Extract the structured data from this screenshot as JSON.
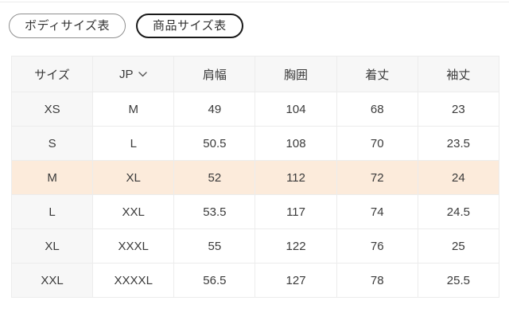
{
  "tabs": {
    "body_size_label": "ボディサイズ表",
    "product_size_label": "商品サイズ表",
    "selected": "product_size"
  },
  "table": {
    "headers": [
      "サイズ",
      "JP",
      "肩幅",
      "胸囲",
      "着丈",
      "袖丈"
    ],
    "unit_selector_value": "JP",
    "rows": [
      {
        "cells": [
          "XS",
          "M",
          "49",
          "104",
          "68",
          "23"
        ],
        "highlighted": false
      },
      {
        "cells": [
          "S",
          "L",
          "50.5",
          "108",
          "70",
          "23.5"
        ],
        "highlighted": false
      },
      {
        "cells": [
          "M",
          "XL",
          "52",
          "112",
          "72",
          "24"
        ],
        "highlighted": true
      },
      {
        "cells": [
          "L",
          "XXL",
          "53.5",
          "117",
          "74",
          "24.5"
        ],
        "highlighted": false
      },
      {
        "cells": [
          "XL",
          "XXXL",
          "55",
          "122",
          "76",
          "25"
        ],
        "highlighted": false
      },
      {
        "cells": [
          "XXL",
          "XXXXL",
          "56.5",
          "127",
          "78",
          "25.5"
        ],
        "highlighted": false
      }
    ],
    "colors": {
      "highlight_row": "#fcebdb",
      "header_bg": "#f7f7f7",
      "border": "#ececec",
      "selected_tab_border": "#1a1a1a",
      "text": "#3a3a3a"
    }
  }
}
